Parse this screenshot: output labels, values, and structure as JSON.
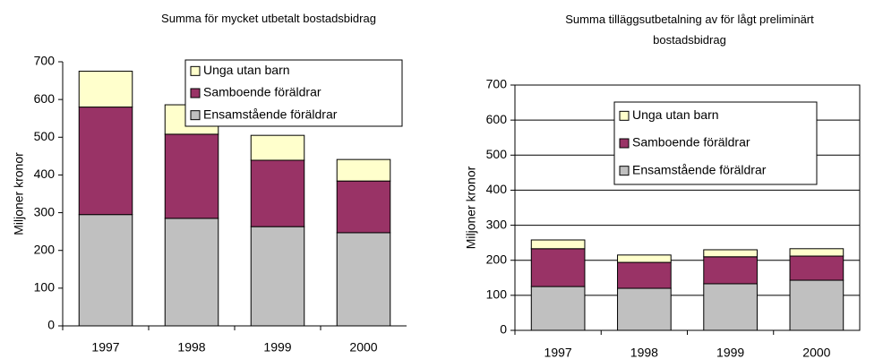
{
  "chart_data": [
    {
      "type": "bar",
      "stacked": true,
      "title": "Summa för mycket utbetalt bostadsbidrag",
      "y_label": "Miljoner kronor",
      "categories": [
        "1997",
        "1998",
        "1999",
        "2000"
      ],
      "series": [
        {
          "name": "Ensamstående föräldrar",
          "color": "#c0c0c0",
          "values": [
            295,
            285,
            263,
            247
          ]
        },
        {
          "name": "Samboende föräldrar",
          "color": "#993366",
          "values": [
            285,
            223,
            176,
            137
          ]
        },
        {
          "name": "Unga utan barn",
          "color": "#ffffcc",
          "values": [
            95,
            78,
            66,
            57
          ]
        }
      ],
      "ylim": [
        0,
        700
      ],
      "yticks": [
        0,
        100,
        200,
        300,
        400,
        500,
        600,
        700
      ],
      "grid": false,
      "legend": "top-right"
    },
    {
      "type": "bar",
      "stacked": true,
      "title": "Summa tilläggsutbetalning av för lågt preliminärt bostadsbidrag",
      "y_label": "Miljoner kronor",
      "categories": [
        "1997",
        "1998",
        "1999",
        "2000"
      ],
      "series": [
        {
          "name": "Ensamstående föräldrar",
          "color": "#c0c0c0",
          "values": [
            125,
            120,
            133,
            143
          ]
        },
        {
          "name": "Samboende föräldrar",
          "color": "#993366",
          "values": [
            108,
            74,
            77,
            69
          ]
        },
        {
          "name": "Unga utan barn",
          "color": "#ffffcc",
          "values": [
            25,
            21,
            20,
            21
          ]
        }
      ],
      "ylim": [
        0,
        700
      ],
      "yticks": [
        0,
        100,
        200,
        300,
        400,
        500,
        600,
        700
      ],
      "grid": true,
      "legend": "top-right"
    }
  ]
}
